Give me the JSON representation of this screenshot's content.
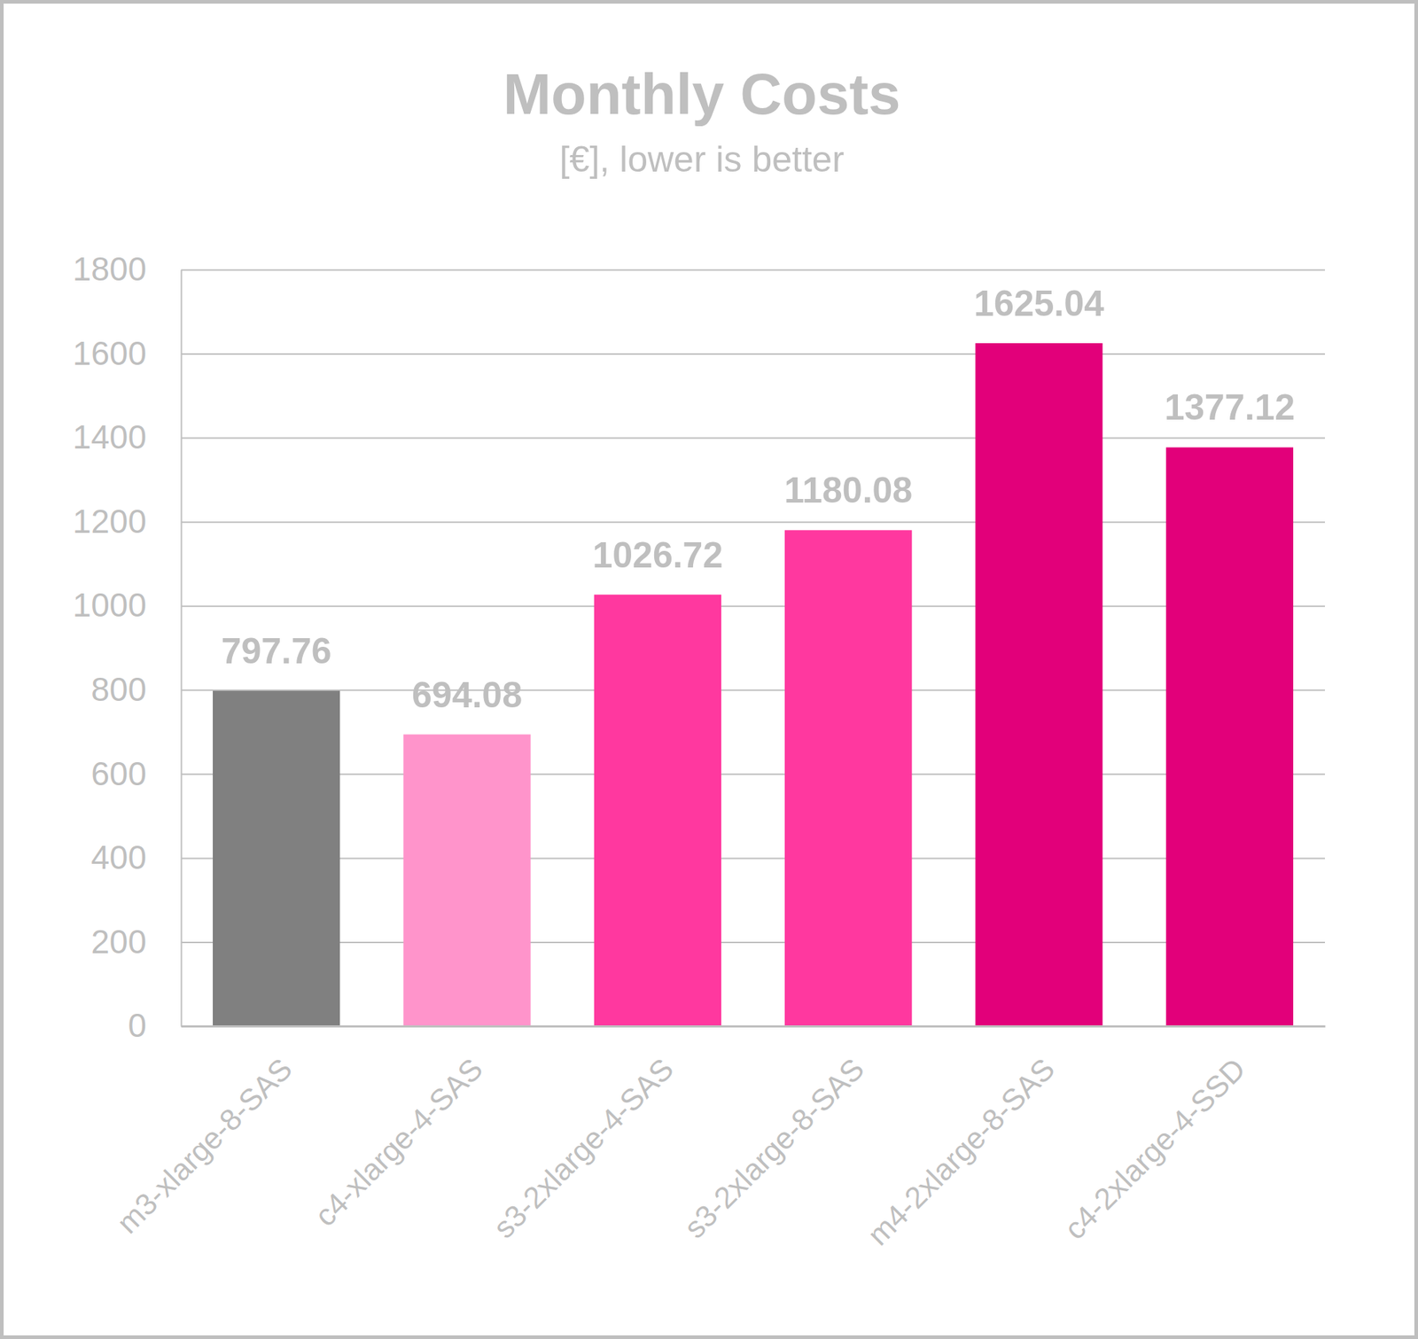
{
  "chart_data": {
    "type": "bar",
    "title": "Monthly Costs",
    "subtitle": "[€], lower is better",
    "categories": [
      "m3-xlarge-8-SAS",
      "c4-xlarge-4-SAS",
      "s3-2xlarge-4-SAS",
      "s3-2xlarge-8-SAS",
      "m4-2xlarge-8-SAS",
      "c4-2xlarge-4-SSD"
    ],
    "values": [
      797.76,
      694.08,
      1026.72,
      1180.08,
      1625.04,
      1377.12
    ],
    "colors": [
      "#808080",
      "#ff94cb",
      "#ff389f",
      "#ff389f",
      "#e2007a",
      "#e2007a"
    ],
    "ylim": [
      0,
      1800
    ],
    "yticks": [
      0,
      200,
      400,
      600,
      800,
      1000,
      1200,
      1400,
      1600,
      1800
    ],
    "grid": true,
    "data_labels": true
  }
}
